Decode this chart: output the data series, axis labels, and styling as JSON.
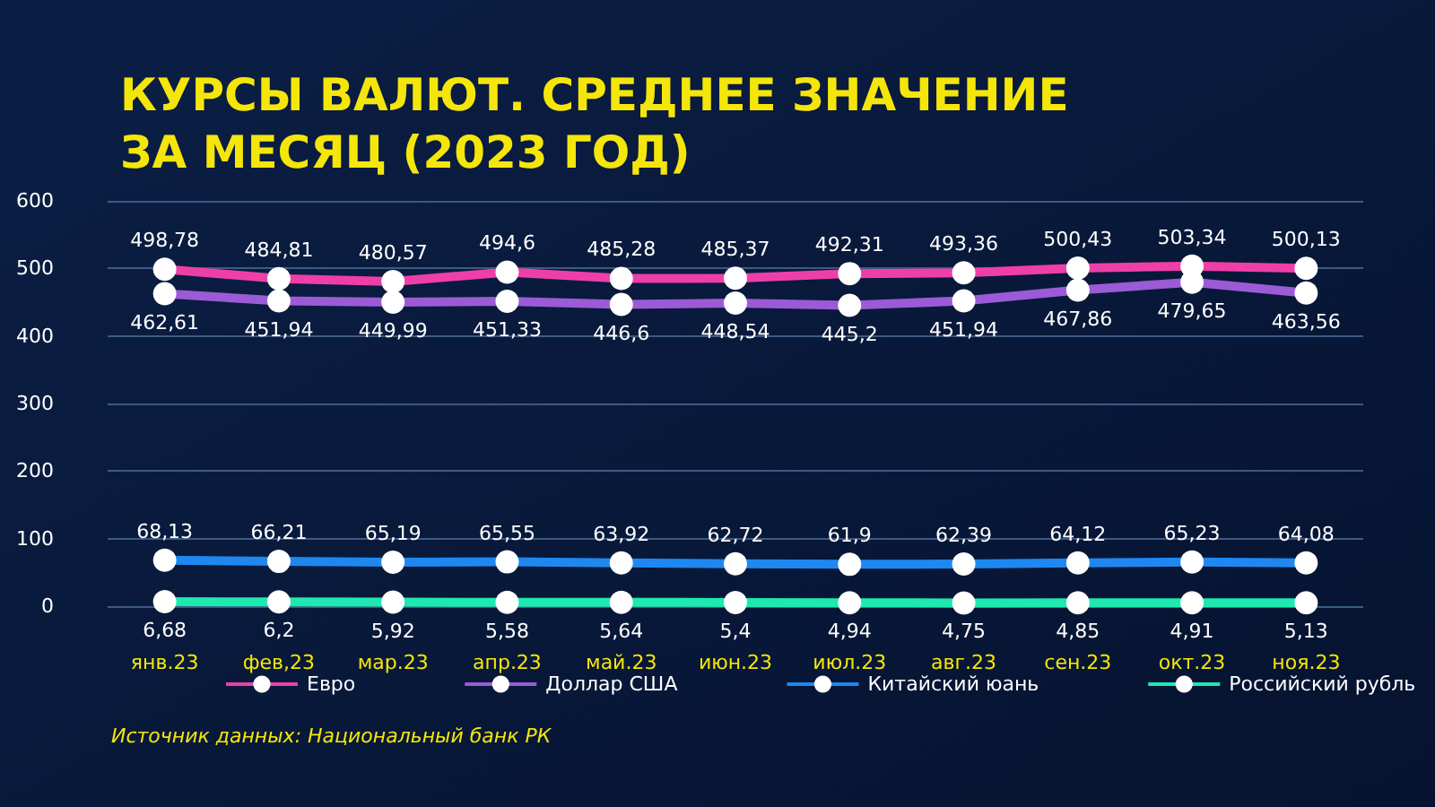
{
  "chart_data": {
    "type": "line",
    "title": "КУРСЫ ВАЛЮТ. СРЕДНЕЕ ЗНАЧЕНИЕ\nЗА МЕСЯЦ (2023 ГОД)",
    "categories": [
      "янв.23",
      "фев,23",
      "мар.23",
      "апр.23",
      "май.23",
      "июн.23",
      "июл.23",
      "авг.23",
      "сен.23",
      "окт.23",
      "ноя.23"
    ],
    "series": [
      {
        "name": "Евро",
        "color": "#ee3fa8",
        "values": [
          498.78,
          484.81,
          480.57,
          494.6,
          485.28,
          485.37,
          492.31,
          493.36,
          500.43,
          503.34,
          500.13
        ],
        "value_labels": [
          "498,78",
          "484,81",
          "480,57",
          "494,6",
          "485,28",
          "485,37",
          "492,31",
          "493,36",
          "500,43",
          "503,34",
          "500,13"
        ]
      },
      {
        "name": "Доллар США",
        "color": "#9b5bd6",
        "values": [
          462.61,
          451.94,
          449.99,
          451.33,
          446.6,
          448.54,
          445.2,
          451.94,
          467.86,
          479.65,
          463.56
        ],
        "value_labels": [
          "462,61",
          "451,94",
          "449,99",
          "451,33",
          "446,6",
          "448,54",
          "445,2",
          "451,94",
          "467,86",
          "479,65",
          "463,56"
        ]
      },
      {
        "name": "Китайский юань",
        "color": "#1e88f0",
        "values": [
          68.13,
          66.21,
          65.19,
          65.55,
          63.92,
          62.72,
          61.9,
          62.39,
          64.12,
          65.23,
          64.08
        ],
        "value_labels": [
          "68,13",
          "66,21",
          "65,19",
          "65,55",
          "63,92",
          "62,72",
          "61,9",
          "62,39",
          "64,12",
          "65,23",
          "64,08"
        ]
      },
      {
        "name": "Российский рубль",
        "color": "#1de9b0",
        "values": [
          6.68,
          6.2,
          5.92,
          5.58,
          5.64,
          5.4,
          4.94,
          4.75,
          4.85,
          4.91,
          5.13
        ],
        "value_labels": [
          "6,68",
          "6,2",
          "5,92",
          "5,58",
          "5,64",
          "5,4",
          "4,94",
          "4,75",
          "4,85",
          "4,91",
          "5,13"
        ]
      }
    ],
    "ylim": [
      0,
      600
    ],
    "yticks": [
      0,
      100,
      200,
      300,
      400,
      500,
      600
    ],
    "grid": "y",
    "legend": "bottom",
    "marker": "circle",
    "annotations": [
      "Источник данных: Национальный банк РК"
    ]
  }
}
